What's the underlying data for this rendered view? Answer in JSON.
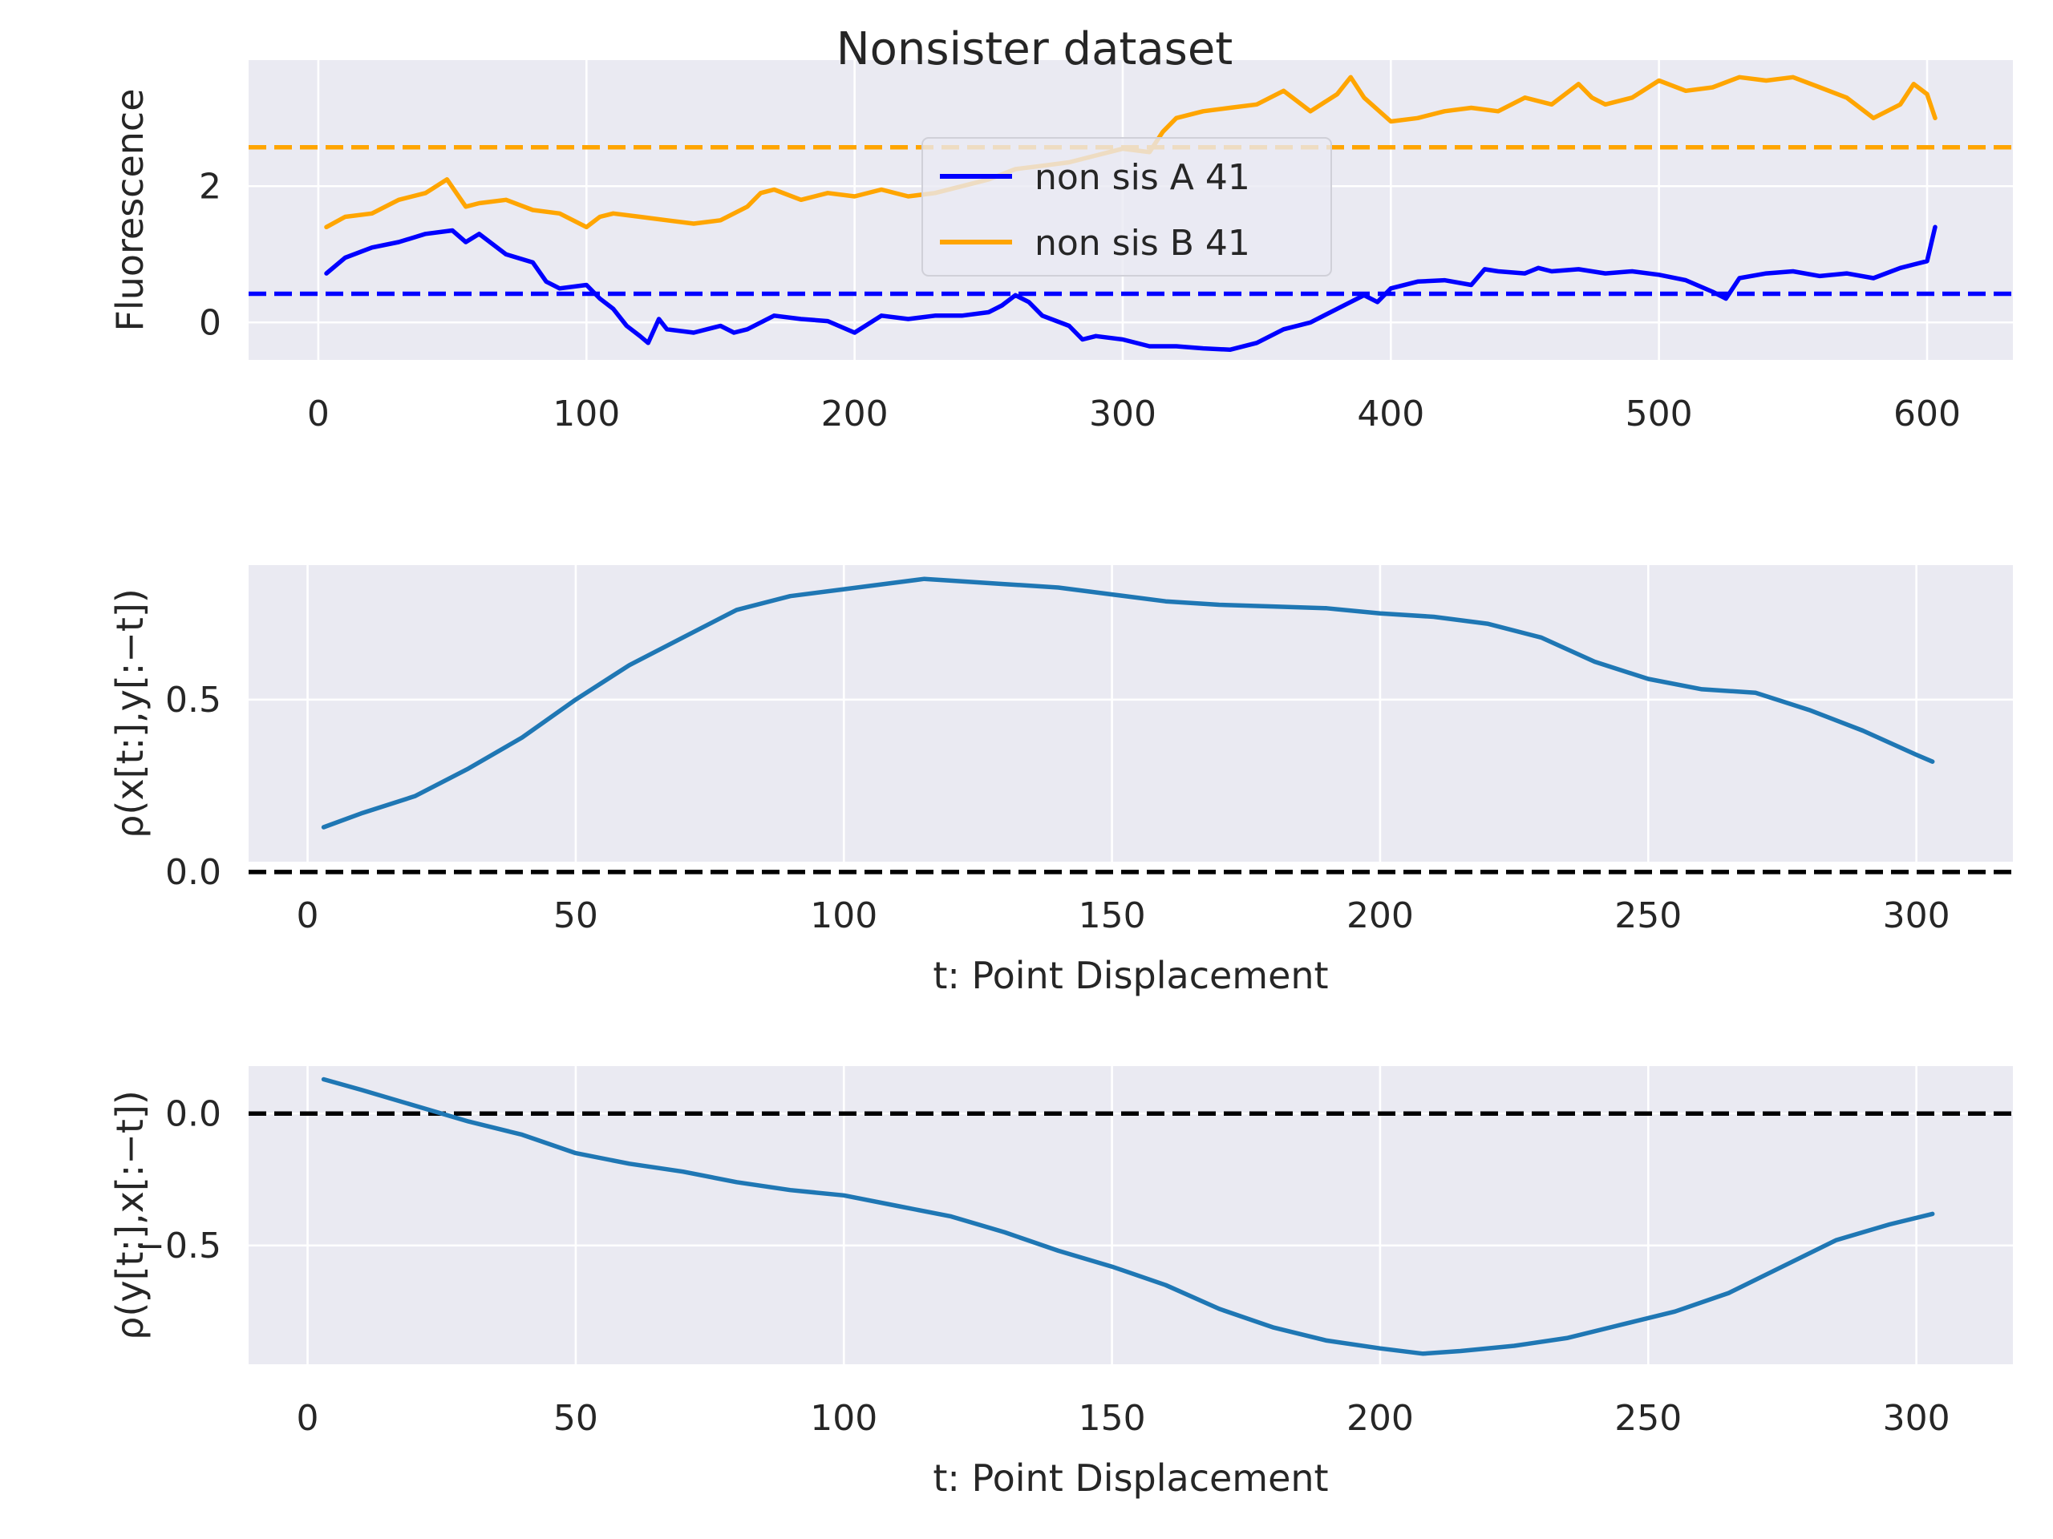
{
  "title": "Nonsister dataset",
  "colors": {
    "a": "#0000ff",
    "b": "#ffa500",
    "corr": "#1f77b4",
    "zero": "#000000",
    "panel": "#eaeaf2"
  },
  "chart_data": [
    {
      "type": "line",
      "ylabel": "Fluorescence",
      "xlabel": "",
      "xlim": [
        -26,
        632
      ],
      "ylim": [
        -0.55,
        3.85
      ],
      "xticks": [
        0,
        100,
        200,
        300,
        400,
        500,
        600
      ],
      "yticks": [
        0,
        2
      ],
      "grid": true,
      "legend": "upper center",
      "series": [
        {
          "name": "non sis A 41",
          "color": "#0000ff",
          "x": [
            3,
            10,
            20,
            30,
            40,
            50,
            55,
            60,
            70,
            80,
            85,
            90,
            100,
            105,
            110,
            115,
            120,
            123,
            127,
            130,
            140,
            150,
            155,
            160,
            170,
            180,
            190,
            200,
            210,
            220,
            230,
            240,
            250,
            255,
            260,
            265,
            270,
            280,
            285,
            290,
            300,
            310,
            320,
            330,
            340,
            350,
            360,
            370,
            380,
            390,
            395,
            400,
            410,
            420,
            430,
            435,
            440,
            450,
            455,
            460,
            470,
            480,
            490,
            500,
            510,
            520,
            525,
            530,
            540,
            550,
            560,
            570,
            580,
            590,
            595,
            600,
            603
          ],
          "y": [
            0.72,
            0.95,
            1.1,
            1.18,
            1.3,
            1.35,
            1.18,
            1.3,
            1.0,
            0.88,
            0.6,
            0.5,
            0.55,
            0.35,
            0.2,
            -0.05,
            -0.2,
            -0.3,
            0.05,
            -0.1,
            -0.15,
            -0.05,
            -0.15,
            -0.1,
            0.1,
            0.05,
            0.02,
            -0.15,
            0.1,
            0.05,
            0.1,
            0.1,
            0.15,
            0.25,
            0.4,
            0.3,
            0.1,
            -0.05,
            -0.25,
            -0.2,
            -0.25,
            -0.35,
            -0.35,
            -0.38,
            -0.4,
            -0.3,
            -0.1,
            0.0,
            0.2,
            0.4,
            0.3,
            0.5,
            0.6,
            0.62,
            0.55,
            0.78,
            0.75,
            0.72,
            0.8,
            0.75,
            0.78,
            0.72,
            0.75,
            0.7,
            0.62,
            0.45,
            0.35,
            0.65,
            0.72,
            0.75,
            0.68,
            0.72,
            0.65,
            0.8,
            0.85,
            0.9,
            1.4
          ]
        },
        {
          "name": "non sis B 41",
          "color": "#ffa500",
          "x": [
            3,
            10,
            20,
            30,
            40,
            48,
            55,
            60,
            70,
            80,
            90,
            100,
            105,
            110,
            120,
            130,
            140,
            150,
            160,
            165,
            170,
            180,
            190,
            200,
            210,
            220,
            230,
            240,
            250,
            260,
            270,
            280,
            290,
            300,
            310,
            315,
            320,
            330,
            340,
            350,
            360,
            370,
            380,
            385,
            390,
            400,
            410,
            420,
            430,
            440,
            450,
            460,
            470,
            475,
            480,
            490,
            500,
            510,
            520,
            530,
            540,
            550,
            560,
            570,
            580,
            590,
            595,
            600,
            603
          ],
          "y": [
            1.4,
            1.55,
            1.6,
            1.8,
            1.9,
            2.1,
            1.7,
            1.75,
            1.8,
            1.65,
            1.6,
            1.4,
            1.55,
            1.6,
            1.55,
            1.5,
            1.45,
            1.5,
            1.7,
            1.9,
            1.95,
            1.8,
            1.9,
            1.85,
            1.95,
            1.85,
            1.9,
            2.0,
            2.1,
            2.25,
            2.3,
            2.35,
            2.45,
            2.55,
            2.5,
            2.8,
            3.0,
            3.1,
            3.15,
            3.2,
            3.4,
            3.1,
            3.35,
            3.6,
            3.3,
            2.95,
            3.0,
            3.1,
            3.15,
            3.1,
            3.3,
            3.2,
            3.5,
            3.3,
            3.2,
            3.3,
            3.55,
            3.4,
            3.45,
            3.6,
            3.55,
            3.6,
            3.45,
            3.3,
            3.0,
            3.2,
            3.5,
            3.35,
            3.0
          ]
        }
      ],
      "reference_lines": [
        {
          "orientation": "horizontal",
          "y": 0.42,
          "color": "#0000ff",
          "style": "dashed"
        },
        {
          "orientation": "horizontal",
          "y": 2.57,
          "color": "#ffa500",
          "style": "dashed"
        }
      ]
    },
    {
      "type": "line",
      "ylabel": "ρ(x[t:],y[:−t])",
      "xlabel": "t: Point Displacement",
      "xlim": [
        -11,
        318
      ],
      "ylim": [
        0.03,
        0.89
      ],
      "xticks": [
        0,
        50,
        100,
        150,
        200,
        250,
        300
      ],
      "xtick_labels": [
        "0",
        "50",
        "100",
        "150",
        "200",
        "250",
        "300"
      ],
      "yticks": [
        0.0,
        0.5
      ],
      "ytick_labels": [
        "0.0",
        "0.5"
      ],
      "grid": true,
      "series": [
        {
          "color": "#1f77b4",
          "x": [
            3,
            10,
            20,
            30,
            40,
            50,
            60,
            70,
            80,
            90,
            100,
            110,
            115,
            120,
            130,
            140,
            150,
            160,
            170,
            180,
            190,
            200,
            210,
            220,
            230,
            240,
            250,
            260,
            270,
            280,
            290,
            300,
            303
          ],
          "y": [
            0.13,
            0.17,
            0.22,
            0.3,
            0.39,
            0.5,
            0.6,
            0.68,
            0.76,
            0.8,
            0.82,
            0.84,
            0.85,
            0.845,
            0.835,
            0.825,
            0.805,
            0.785,
            0.775,
            0.77,
            0.765,
            0.75,
            0.74,
            0.72,
            0.68,
            0.61,
            0.56,
            0.53,
            0.52,
            0.47,
            0.41,
            0.34,
            0.32
          ]
        }
      ],
      "reference_lines": [
        {
          "orientation": "horizontal",
          "y": 0.0,
          "color": "#000000",
          "style": "dashed"
        }
      ]
    },
    {
      "type": "line",
      "ylabel": "ρ(y[t:],x[:−t])",
      "xlabel": "t: Point Displacement",
      "xlim": [
        -11,
        318
      ],
      "ylim": [
        -0.95,
        0.18
      ],
      "xticks": [
        0,
        50,
        100,
        150,
        200,
        250,
        300
      ],
      "xtick_labels": [
        "0",
        "50",
        "100",
        "150",
        "200",
        "250",
        "300"
      ],
      "yticks": [
        -0.5,
        0.0
      ],
      "ytick_labels": [
        "−0.5",
        "0.0"
      ],
      "grid": true,
      "series": [
        {
          "color": "#1f77b4",
          "x": [
            3,
            10,
            20,
            30,
            40,
            50,
            60,
            70,
            80,
            90,
            100,
            110,
            120,
            130,
            140,
            150,
            160,
            170,
            180,
            190,
            200,
            208,
            215,
            225,
            235,
            245,
            255,
            265,
            275,
            285,
            295,
            303
          ],
          "y": [
            0.13,
            0.09,
            0.03,
            -0.03,
            -0.08,
            -0.15,
            -0.19,
            -0.22,
            -0.26,
            -0.29,
            -0.31,
            -0.35,
            -0.39,
            -0.45,
            -0.52,
            -0.58,
            -0.65,
            -0.74,
            -0.81,
            -0.86,
            -0.89,
            -0.91,
            -0.9,
            -0.88,
            -0.85,
            -0.8,
            -0.75,
            -0.68,
            -0.58,
            -0.48,
            -0.42,
            -0.38
          ]
        }
      ],
      "reference_lines": [
        {
          "orientation": "horizontal",
          "y": 0.0,
          "color": "#000000",
          "style": "dashed"
        }
      ]
    }
  ]
}
